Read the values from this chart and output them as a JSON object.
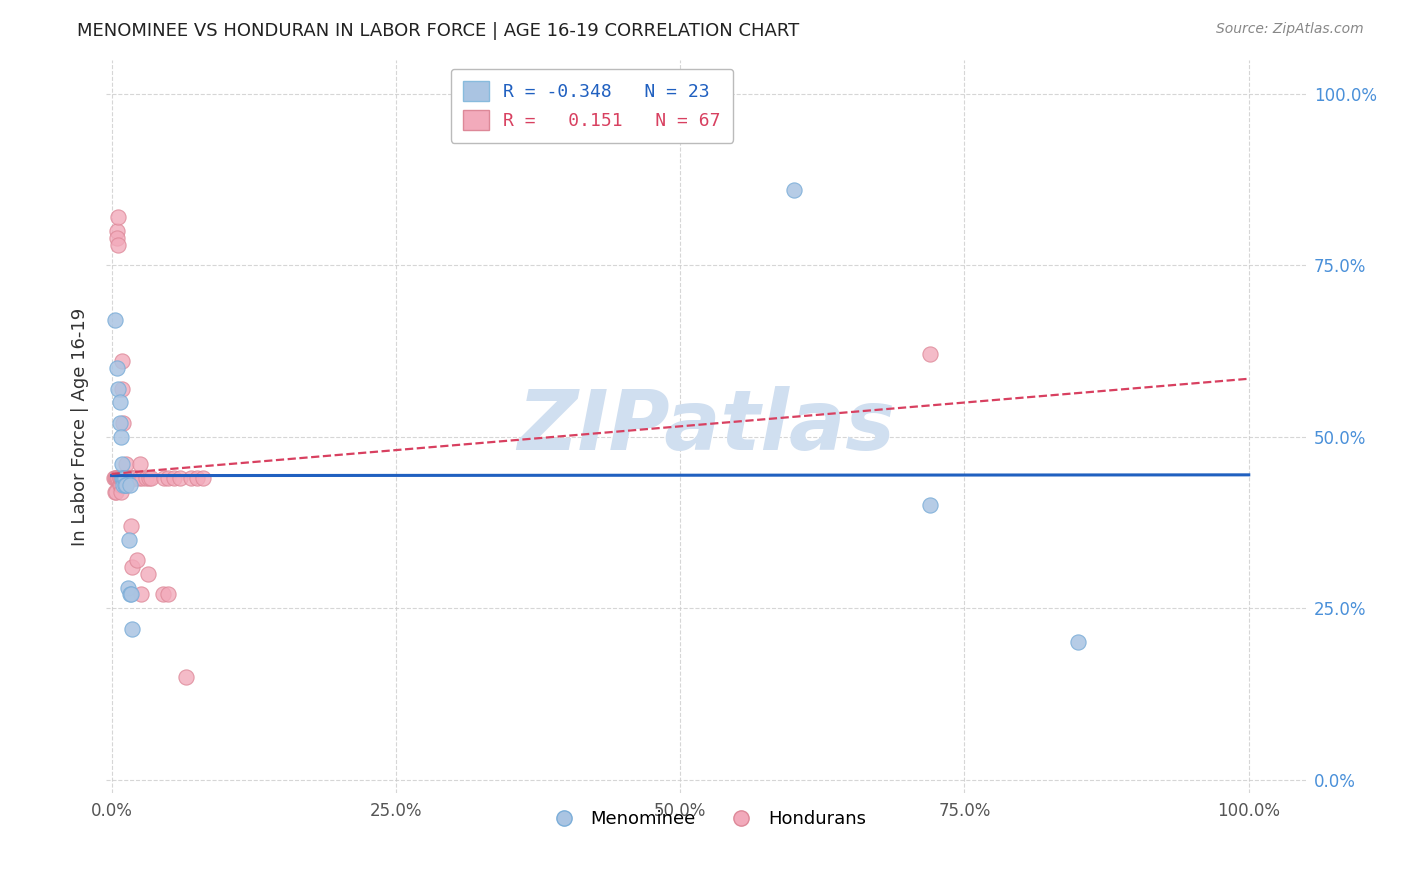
{
  "title": "MENOMINEE VS HONDURAN IN LABOR FORCE | AGE 16-19 CORRELATION CHART",
  "source": "Source: ZipAtlas.com",
  "ylabel": "In Labor Force | Age 16-19",
  "ylim": [
    -0.02,
    1.05
  ],
  "xlim": [
    -0.005,
    1.05
  ],
  "ytick_values": [
    0.0,
    0.25,
    0.5,
    0.75,
    1.0
  ],
  "xtick_values": [
    0.0,
    0.25,
    0.5,
    0.75,
    1.0
  ],
  "menominee_color": "#aac4e2",
  "honduran_color": "#f2aabb",
  "line_menominee_color": "#2060c0",
  "line_honduran_color": "#d84060",
  "watermark": "ZIPatlas",
  "watermark_color": "#d0dff0",
  "background_color": "#ffffff",
  "grid_color": "#cccccc",
  "menominee_x": [
    0.003,
    0.005,
    0.006,
    0.007,
    0.007,
    0.008,
    0.009,
    0.009,
    0.01,
    0.01,
    0.011,
    0.012,
    0.012,
    0.013,
    0.014,
    0.015,
    0.016,
    0.016,
    0.017,
    0.018,
    0.6,
    0.72,
    0.85
  ],
  "menominee_y": [
    0.67,
    0.6,
    0.57,
    0.55,
    0.52,
    0.5,
    0.46,
    0.44,
    0.44,
    0.43,
    0.44,
    0.44,
    0.43,
    0.43,
    0.28,
    0.35,
    0.43,
    0.27,
    0.27,
    0.22,
    0.86,
    0.4,
    0.2
  ],
  "honduran_x": [
    0.002,
    0.003,
    0.003,
    0.004,
    0.004,
    0.005,
    0.005,
    0.005,
    0.006,
    0.006,
    0.006,
    0.007,
    0.007,
    0.007,
    0.008,
    0.008,
    0.008,
    0.009,
    0.009,
    0.009,
    0.01,
    0.01,
    0.01,
    0.01,
    0.011,
    0.011,
    0.011,
    0.012,
    0.012,
    0.012,
    0.013,
    0.013,
    0.013,
    0.013,
    0.014,
    0.014,
    0.015,
    0.015,
    0.015,
    0.016,
    0.016,
    0.017,
    0.018,
    0.018,
    0.019,
    0.02,
    0.021,
    0.022,
    0.024,
    0.025,
    0.026,
    0.027,
    0.03,
    0.032,
    0.033,
    0.035,
    0.045,
    0.046,
    0.05,
    0.05,
    0.055,
    0.06,
    0.065,
    0.07,
    0.075,
    0.08,
    0.72
  ],
  "honduran_y": [
    0.44,
    0.44,
    0.42,
    0.44,
    0.42,
    0.8,
    0.79,
    0.44,
    0.82,
    0.78,
    0.44,
    0.44,
    0.43,
    0.44,
    0.43,
    0.44,
    0.42,
    0.61,
    0.57,
    0.44,
    0.44,
    0.44,
    0.52,
    0.44,
    0.44,
    0.44,
    0.44,
    0.44,
    0.44,
    0.44,
    0.46,
    0.44,
    0.44,
    0.43,
    0.44,
    0.44,
    0.44,
    0.44,
    0.44,
    0.44,
    0.44,
    0.37,
    0.44,
    0.31,
    0.44,
    0.44,
    0.44,
    0.32,
    0.44,
    0.46,
    0.27,
    0.44,
    0.44,
    0.3,
    0.44,
    0.44,
    0.27,
    0.44,
    0.44,
    0.27,
    0.44,
    0.44,
    0.15,
    0.44,
    0.44,
    0.44,
    0.62
  ],
  "menominee_line_x0": 0.0,
  "menominee_line_x1": 1.0,
  "honduran_line_x0": 0.0,
  "honduran_line_x1": 1.0
}
